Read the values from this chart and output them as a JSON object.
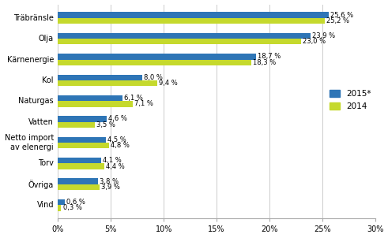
{
  "categories": [
    "Vind",
    "Övriga",
    "Torv",
    "Netto import\nav elenergi",
    "Vatten",
    "Naturgas",
    "Kol",
    "Kärnenergie",
    "Olja",
    "Träbränsle"
  ],
  "values_2015": [
    0.6,
    3.8,
    4.1,
    4.5,
    4.6,
    6.1,
    8.0,
    18.7,
    23.9,
    25.6
  ],
  "values_2014": [
    0.3,
    3.9,
    4.4,
    4.8,
    3.5,
    7.1,
    9.4,
    18.3,
    23.0,
    25.2
  ],
  "labels_2015": [
    "0,6 %",
    "3,8 %",
    "4,1 %",
    "4,5 %",
    "4,6 %",
    "6,1 %",
    "8,0 %",
    "18,7 %",
    "23,9 %",
    "25,6 %"
  ],
  "labels_2014": [
    "0,3 %",
    "3,9 %",
    "4,4 %",
    "4,8 %",
    "3,5 %",
    "7,1 %",
    "9,4 %",
    "18,3 %",
    "23,0 %",
    "25,2 %"
  ],
  "color_2015": "#2E75B6",
  "color_2014": "#C5D92D",
  "legend_2015": "2015*",
  "legend_2014": "2014",
  "xlim": [
    0,
    30
  ],
  "xticks": [
    0,
    5,
    10,
    15,
    20,
    25,
    30
  ],
  "xtick_labels": [
    "0%",
    "5%",
    "10%",
    "15%",
    "20%",
    "25%",
    "30%"
  ],
  "bar_height": 0.28,
  "label_fontsize": 6.0,
  "category_fontsize": 7.0,
  "tick_fontsize": 7.0,
  "legend_fontsize": 7.5
}
